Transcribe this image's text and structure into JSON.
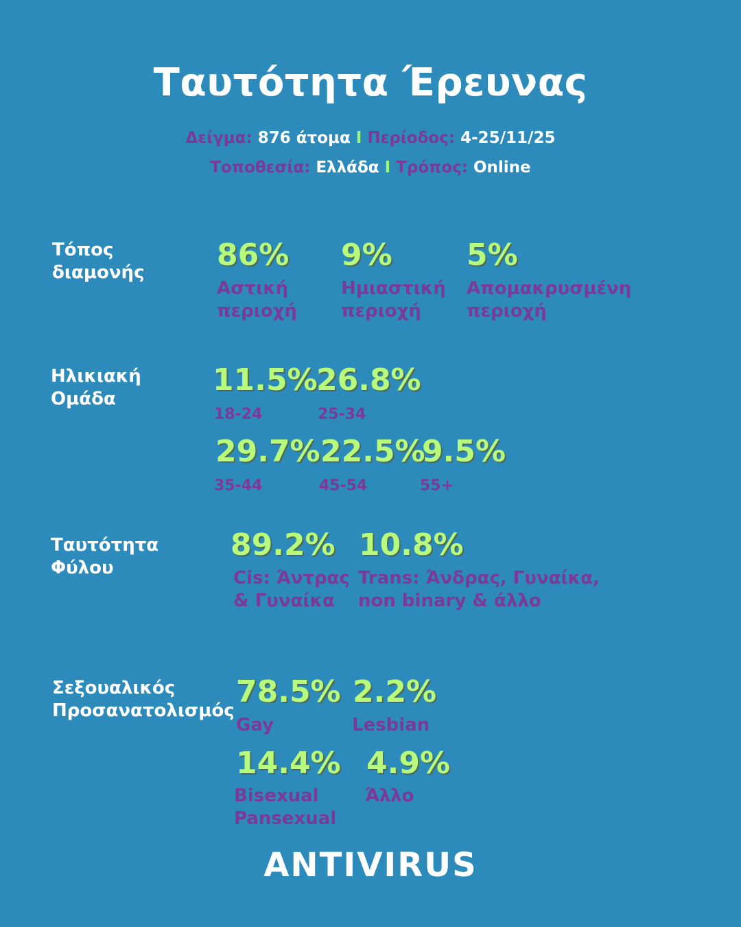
{
  "title": "Ταυτότητα Έρευνας",
  "meta": {
    "sample_label": "Δείγμα:",
    "sample_value": "876 άτομα",
    "period_label": "Περίοδος:",
    "period_value": "4-25/11/25",
    "location_label": "Τοποθεσία:",
    "location_value": "Ελλάδα",
    "method_label": "Τρόπος:",
    "method_value": "Online",
    "separator": "I"
  },
  "residence": {
    "label_line1": "Τόπος",
    "label_line2": "διαμονής",
    "items": [
      {
        "pct": "86%",
        "line1": "Αστική",
        "line2": "περιοχή"
      },
      {
        "pct": "9%",
        "line1": "Ημιαστική",
        "line2": "περιοχή"
      },
      {
        "pct": "5%",
        "line1": "Απομακρυσμένη",
        "line2": "περιοχή"
      }
    ]
  },
  "age": {
    "label_line1": "Ηλικιακή",
    "label_line2": "Ομάδα",
    "items": [
      {
        "pct": "11.5%",
        "range": "18-24"
      },
      {
        "pct": "26.8%",
        "range": "25-34"
      },
      {
        "pct": "29.7%",
        "range": "35-44"
      },
      {
        "pct": "22.5%",
        "range": "45-54"
      },
      {
        "pct": "9.5%",
        "range": "55+"
      }
    ]
  },
  "gender": {
    "label_line1": "Ταυτότητα",
    "label_line2": "Φύλου",
    "items": [
      {
        "pct": "89.2%",
        "line1": "Cis: Άντρας",
        "line2": "& Γυναίκα"
      },
      {
        "pct": "10.8%",
        "line1": "Trans: Άνδρας, Γυναίκα,",
        "line2": "non binary & άλλο"
      }
    ]
  },
  "orientation": {
    "label_line1": "Σεξουαλικός",
    "label_line2": "Προσανατολισμός",
    "items": [
      {
        "pct": "78.5%",
        "line1": "Gay",
        "line2": ""
      },
      {
        "pct": "2.2%",
        "line1": "Lesbian",
        "line2": ""
      },
      {
        "pct": "14.4%",
        "line1": "Bisexual",
        "line2": "Pansexual"
      },
      {
        "pct": "4.9%",
        "line1": "Άλλο",
        "line2": ""
      }
    ]
  },
  "brand": "ANTIVIRUS",
  "colors": {
    "background": "#2c8bba",
    "percent": "#b8fb7c",
    "caption": "#7b3a98",
    "separator": "#9ff77a",
    "text": "#ffffff"
  }
}
